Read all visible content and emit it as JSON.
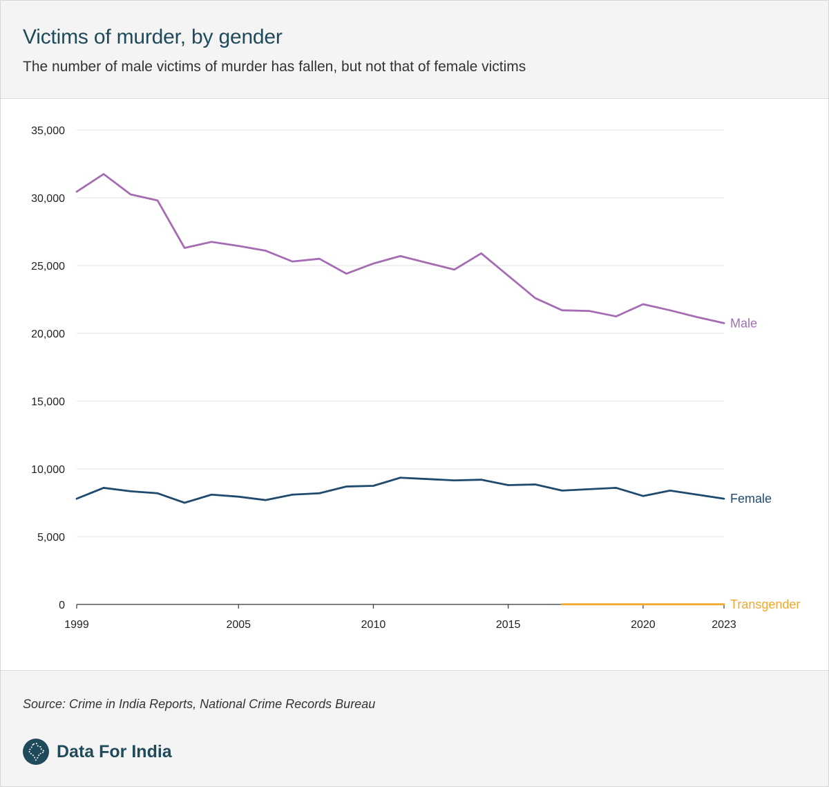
{
  "header": {
    "title": "Victims of murder, by gender",
    "subtitle": "The number of male victims of murder has fallen, but not that of female victims"
  },
  "footer": {
    "source": "Source: Crime in India Reports, National Crime Records Bureau",
    "brand": "Data For India"
  },
  "chart_data": {
    "type": "line",
    "title": "Victims of murder, by gender",
    "subtitle": "The number of male victims of murder has fallen, but not that of female victims",
    "xlabel": "",
    "ylabel": "",
    "xlim": [
      1999,
      2023
    ],
    "ylim": [
      0,
      35000
    ],
    "x_ticks": [
      1999,
      2005,
      2010,
      2015,
      2020,
      2023
    ],
    "y_ticks": [
      0,
      5000,
      10000,
      15000,
      20000,
      25000,
      30000,
      35000
    ],
    "y_tick_labels": [
      "0",
      "5,000",
      "10,000",
      "15,000",
      "20,000",
      "25,000",
      "30,000",
      "35,000"
    ],
    "grid": true,
    "legend": "direct labels at line ends (right)",
    "series": [
      {
        "name": "Male",
        "color": "#a56cb3",
        "x": [
          1999,
          2000,
          2001,
          2002,
          2003,
          2004,
          2005,
          2006,
          2007,
          2008,
          2009,
          2010,
          2011,
          2012,
          2013,
          2014,
          2015,
          2016,
          2017,
          2018,
          2019,
          2020,
          2021,
          2022,
          2023
        ],
        "values": [
          30450,
          31750,
          30250,
          29800,
          26300,
          26750,
          26450,
          26100,
          25300,
          25500,
          24400,
          25150,
          25700,
          25200,
          24700,
          25900,
          24250,
          22600,
          21700,
          21650,
          21250,
          22150,
          21700,
          21200,
          20750
        ]
      },
      {
        "name": "Female",
        "color": "#1f4a6e",
        "x": [
          1999,
          2000,
          2001,
          2002,
          2003,
          2004,
          2005,
          2006,
          2007,
          2008,
          2009,
          2010,
          2011,
          2012,
          2013,
          2014,
          2015,
          2016,
          2017,
          2018,
          2019,
          2020,
          2021,
          2022,
          2023
        ],
        "values": [
          7800,
          8600,
          8350,
          8200,
          7500,
          8100,
          7950,
          7700,
          8100,
          8200,
          8700,
          8750,
          9350,
          9250,
          9150,
          9200,
          8800,
          8850,
          8400,
          8500,
          8600,
          8000,
          8400,
          8100,
          7800
        ]
      },
      {
        "name": "Transgender",
        "color": "#f0a830",
        "x": [
          2017,
          2018,
          2019,
          2020,
          2021,
          2022,
          2023
        ],
        "values": [
          10,
          10,
          10,
          10,
          10,
          10,
          10
        ]
      }
    ]
  }
}
